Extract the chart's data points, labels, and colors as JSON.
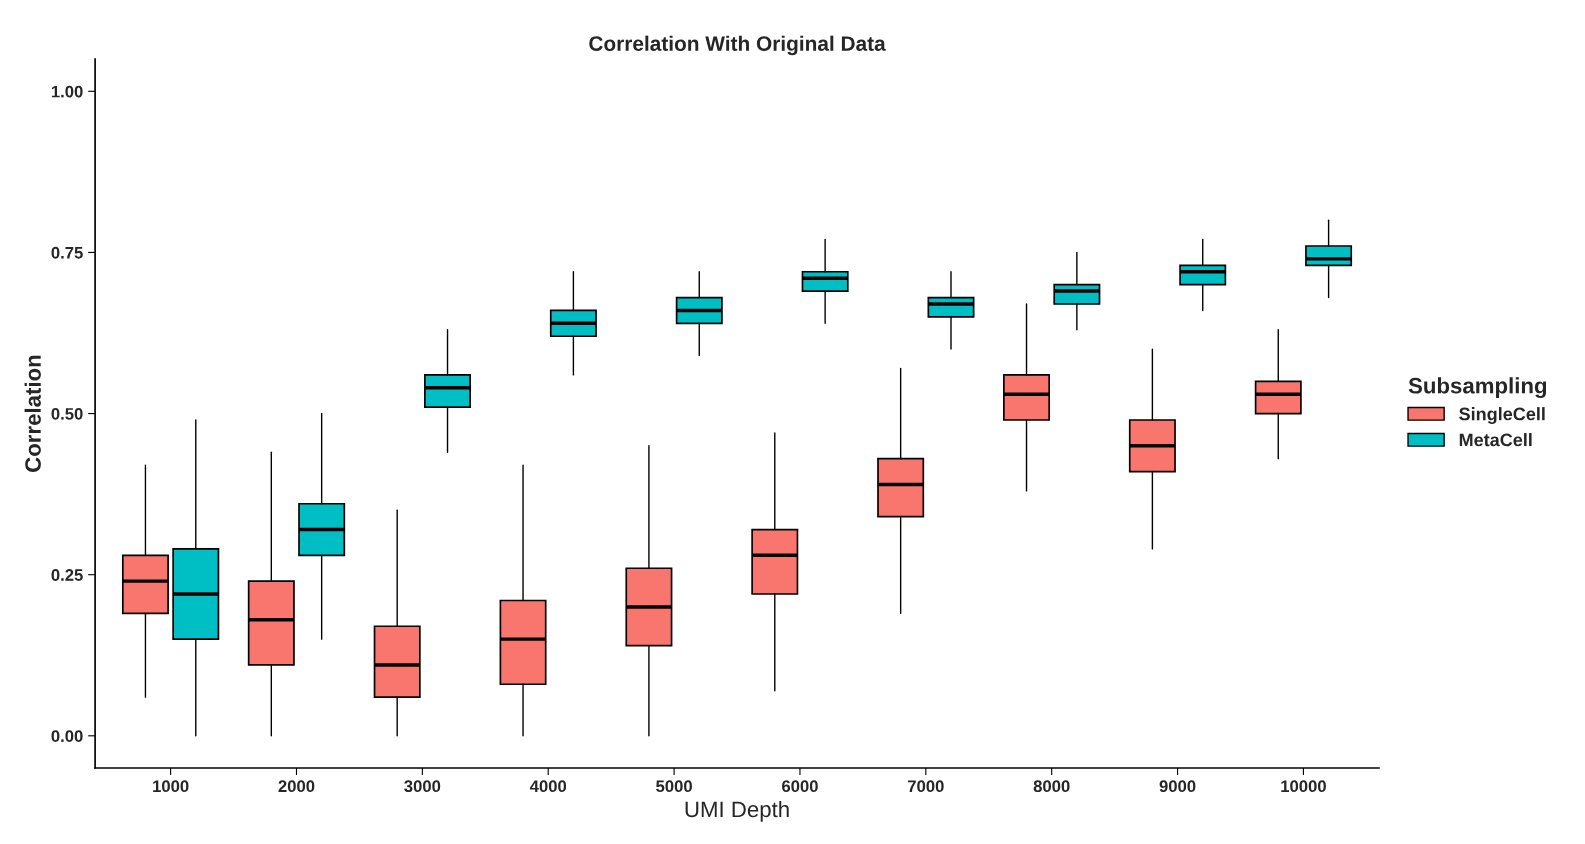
{
  "chart_data": {
    "type": "box",
    "title": "Correlation With Original Data",
    "xlabel": "UMI Depth",
    "ylabel": "Correlation",
    "legend_title": "Subsampling",
    "legend": "right",
    "grid": false,
    "categories": [
      "1000",
      "2000",
      "3000",
      "4000",
      "5000",
      "6000",
      "7000",
      "8000",
      "9000",
      "10000"
    ],
    "ylim": [
      -0.05,
      1.05
    ],
    "yticks": [
      {
        "value": 0,
        "label": "0.00"
      },
      {
        "value": 0.25,
        "label": "0.25"
      },
      {
        "value": 0.5,
        "label": "0.50"
      },
      {
        "value": 0.75,
        "label": "0.75"
      },
      {
        "value": 1,
        "label": "1.00"
      }
    ],
    "series": [
      {
        "name": "SingleCell",
        "color": "#f8766d",
        "boxes": [
          {
            "low": 0.06,
            "q1": 0.19,
            "median": 0.24,
            "q3": 0.28,
            "high": 0.42
          },
          {
            "low": 0.0,
            "q1": 0.11,
            "median": 0.18,
            "q3": 0.24,
            "high": 0.44
          },
          {
            "low": 0.0,
            "q1": 0.06,
            "median": 0.11,
            "q3": 0.17,
            "high": 0.35
          },
          {
            "low": 0.0,
            "q1": 0.08,
            "median": 0.15,
            "q3": 0.21,
            "high": 0.42
          },
          {
            "low": 0.0,
            "q1": 0.14,
            "median": 0.2,
            "q3": 0.26,
            "high": 0.45
          },
          {
            "low": 0.07,
            "q1": 0.22,
            "median": 0.28,
            "q3": 0.32,
            "high": 0.47
          },
          {
            "low": 0.19,
            "q1": 0.34,
            "median": 0.39,
            "q3": 0.43,
            "high": 0.57
          },
          {
            "low": 0.38,
            "q1": 0.49,
            "median": 0.53,
            "q3": 0.56,
            "high": 0.67
          },
          {
            "low": 0.29,
            "q1": 0.41,
            "median": 0.45,
            "q3": 0.49,
            "high": 0.6
          },
          {
            "low": 0.43,
            "q1": 0.5,
            "median": 0.53,
            "q3": 0.55,
            "high": 0.63
          }
        ]
      },
      {
        "name": "MetaCell",
        "color": "#00bfc4",
        "boxes": [
          {
            "low": 0.0,
            "q1": 0.15,
            "median": 0.22,
            "q3": 0.29,
            "high": 0.49
          },
          {
            "low": 0.15,
            "q1": 0.28,
            "median": 0.32,
            "q3": 0.36,
            "high": 0.5
          },
          {
            "low": 0.44,
            "q1": 0.51,
            "median": 0.54,
            "q3": 0.56,
            "high": 0.63
          },
          {
            "low": 0.56,
            "q1": 0.62,
            "median": 0.64,
            "q3": 0.66,
            "high": 0.72
          },
          {
            "low": 0.59,
            "q1": 0.64,
            "median": 0.66,
            "q3": 0.68,
            "high": 0.72
          },
          {
            "low": 0.64,
            "q1": 0.69,
            "median": 0.71,
            "q3": 0.72,
            "high": 0.77
          },
          {
            "low": 0.6,
            "q1": 0.65,
            "median": 0.67,
            "q3": 0.68,
            "high": 0.72
          },
          {
            "low": 0.63,
            "q1": 0.67,
            "median": 0.69,
            "q3": 0.7,
            "high": 0.75
          },
          {
            "low": 0.66,
            "q1": 0.7,
            "median": 0.72,
            "q3": 0.73,
            "high": 0.77
          },
          {
            "low": 0.68,
            "q1": 0.73,
            "median": 0.74,
            "q3": 0.76,
            "high": 0.8
          }
        ]
      }
    ]
  }
}
